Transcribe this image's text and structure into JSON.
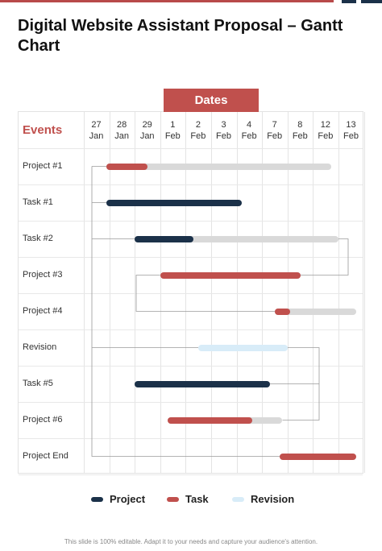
{
  "title": "Digital Website Assistant Proposal – Gantt Chart",
  "dates_label": "Dates",
  "events_label": "Events",
  "colors": {
    "project": "#1b3149",
    "task": "#c0504d",
    "revision": "#d8ecf8",
    "remaining": "#d9d9d9"
  },
  "chart_data": {
    "type": "gantt",
    "columns": [
      {
        "day": "27",
        "month": "Jan"
      },
      {
        "day": "28",
        "month": "Jan"
      },
      {
        "day": "29",
        "month": "Jan"
      },
      {
        "day": "1",
        "month": "Feb"
      },
      {
        "day": "2",
        "month": "Feb"
      },
      {
        "day": "3",
        "month": "Feb"
      },
      {
        "day": "4",
        "month": "Feb"
      },
      {
        "day": "7",
        "month": "Feb"
      },
      {
        "day": "8",
        "month": "Feb"
      },
      {
        "day": "12",
        "month": "Feb"
      },
      {
        "day": "13",
        "month": "Feb"
      }
    ],
    "rows": [
      {
        "label": "Project #1",
        "kind": "task",
        "start": 0.9,
        "progress_end": 2.5,
        "end": 9.7
      },
      {
        "label": "Task #1",
        "kind": "project",
        "start": 0.9,
        "progress_end": 6.2,
        "end": 6.2
      },
      {
        "label": "Task #2",
        "kind": "project",
        "start": 2.0,
        "progress_end": 4.3,
        "end": 10.0
      },
      {
        "label": "Project #3",
        "kind": "task",
        "start": 3.0,
        "progress_end": 8.5,
        "end": 8.5
      },
      {
        "label": "Project #4",
        "kind": "task",
        "start": 7.5,
        "progress_end": 8.1,
        "end": 10.7
      },
      {
        "label": "Revision",
        "kind": "revision",
        "start": 4.5,
        "progress_end": 8.0,
        "end": 8.0
      },
      {
        "label": "Task #5",
        "kind": "project",
        "start": 2.0,
        "progress_end": 7.3,
        "end": 7.3
      },
      {
        "label": "Project #6",
        "kind": "task",
        "start": 3.3,
        "progress_end": 6.6,
        "end": 7.8
      },
      {
        "label": "Project End",
        "kind": "task",
        "start": 7.7,
        "progress_end": 10.7,
        "end": 10.7
      }
    ],
    "legend": [
      {
        "key": "project",
        "label": "Project"
      },
      {
        "key": "task",
        "label": "Task"
      },
      {
        "key": "revision",
        "label": "Revision"
      }
    ]
  },
  "footer": "This slide is 100% editable. Adapt it to your needs and capture your audience's attention."
}
